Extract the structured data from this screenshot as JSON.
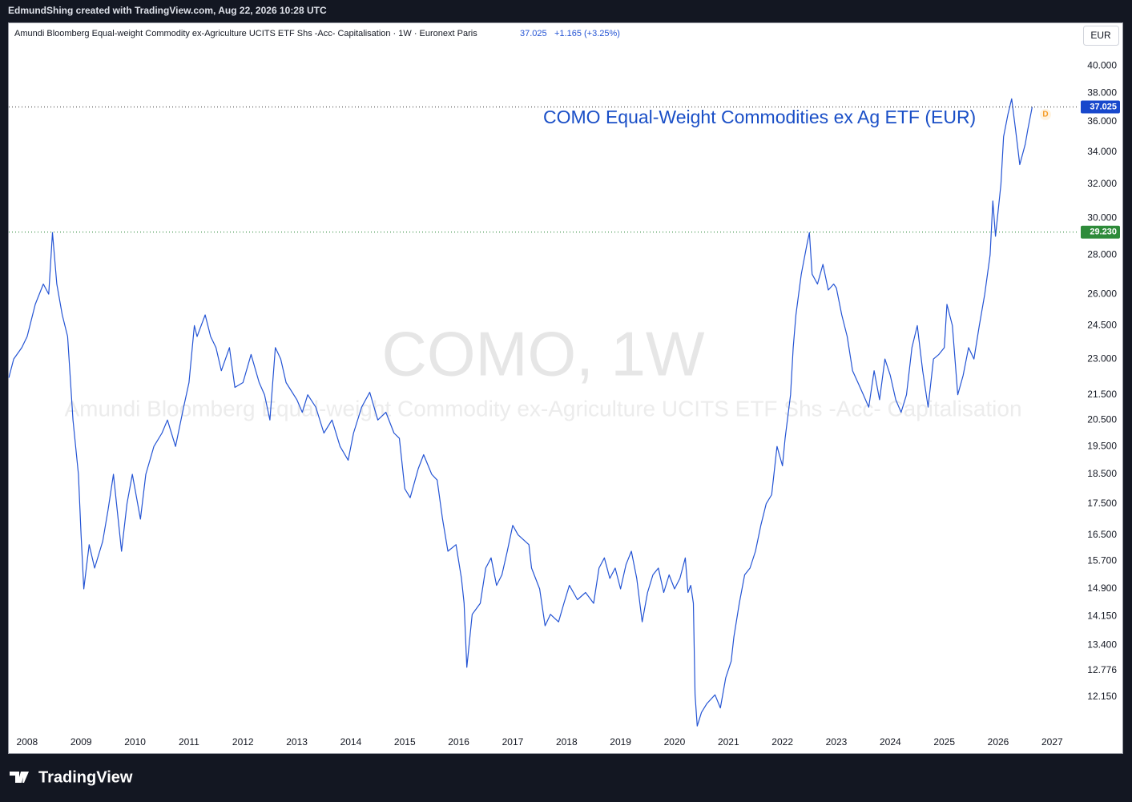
{
  "header": {
    "text": "EdmundShing created with TradingView.com, Aug 22, 2026 10:28 UTC"
  },
  "footer": {
    "brand": "TradingView"
  },
  "chart_data": {
    "type": "line",
    "legend": {
      "name": "Amundi Bloomberg Equal-weight Commodity ex-Agriculture UCITS ETF Shs -Acc- Capitalisation · 1W · Euronext Paris",
      "price": "37.025",
      "change": "+1.165 (+3.25%)"
    },
    "currency": "EUR",
    "watermark": {
      "symbol": "COMO, 1W",
      "name": "Amundi Bloomberg Equal-weight Commodity ex-Agriculture UCITS ETF Shs -Acc- Capitalisation"
    },
    "annotation": "COMO Equal-Weight Commodities ex Ag ETF (EUR)",
    "marker_label": "D",
    "log_scale": true,
    "grid": false,
    "xlim": [
      2007.66,
      2027.47
    ],
    "xticks": [
      2008,
      2009,
      2010,
      2011,
      2012,
      2013,
      2014,
      2015,
      2016,
      2017,
      2018,
      2019,
      2020,
      2021,
      2022,
      2023,
      2024,
      2025,
      2026,
      2027
    ],
    "ylim": [
      11.4,
      43.3
    ],
    "yticks": [
      {
        "value": 12.15,
        "label": "12.150"
      },
      12.776,
      {
        "value": 13.4,
        "label": "13.400"
      },
      {
        "value": 14.15,
        "label": "14.150"
      },
      {
        "value": 14.9,
        "label": "14.900"
      },
      {
        "value": 15.7,
        "label": "15.700"
      },
      {
        "value": 16.5,
        "label": "16.500"
      },
      {
        "value": 17.5,
        "label": "17.500"
      },
      {
        "value": 18.5,
        "label": "18.500"
      },
      {
        "value": 19.5,
        "label": "19.500"
      },
      {
        "value": 20.5,
        "label": "20.500"
      },
      {
        "value": 21.5,
        "label": "21.500"
      },
      {
        "value": 23,
        "label": "23.000"
      },
      {
        "value": 24.5,
        "label": "24.500"
      },
      {
        "value": 26,
        "label": "26.000"
      },
      {
        "value": 28,
        "label": "28.000"
      },
      {
        "value": 30,
        "label": "30.000"
      },
      {
        "value": 32,
        "label": "32.000"
      },
      {
        "value": 34,
        "label": "34.000"
      },
      {
        "value": 36,
        "label": "36.000"
      },
      {
        "value": 38,
        "label": "38.000"
      },
      {
        "value": 40,
        "label": "40.000"
      }
    ],
    "price_lines": [
      {
        "value": 37.025,
        "label": "37.025",
        "color": "#1848cc",
        "line_color": "#555555"
      },
      {
        "value": 29.23,
        "label": "29.230",
        "color": "#2e8b3a",
        "line_color": "#2e8b3a"
      }
    ],
    "x": [
      2007.66,
      2007.75,
      2007.9,
      2008.0,
      2008.15,
      2008.3,
      2008.4,
      2008.47,
      2008.55,
      2008.65,
      2008.75,
      2008.85,
      2008.95,
      2009.0,
      2009.05,
      2009.15,
      2009.25,
      2009.4,
      2009.5,
      2009.6,
      2009.75,
      2009.85,
      2009.95,
      2010.1,
      2010.2,
      2010.35,
      2010.5,
      2010.6,
      2010.75,
      2010.9,
      2011.0,
      2011.1,
      2011.15,
      2011.3,
      2011.4,
      2011.5,
      2011.6,
      2011.75,
      2011.85,
      2012.0,
      2012.15,
      2012.3,
      2012.4,
      2012.5,
      2012.6,
      2012.7,
      2012.8,
      2013.0,
      2013.1,
      2013.2,
      2013.35,
      2013.5,
      2013.65,
      2013.8,
      2013.95,
      2014.05,
      2014.2,
      2014.35,
      2014.5,
      2014.65,
      2014.8,
      2014.9,
      2015.0,
      2015.1,
      2015.25,
      2015.35,
      2015.5,
      2015.6,
      2015.7,
      2015.8,
      2015.95,
      2016.05,
      2016.1,
      2016.15,
      2016.25,
      2016.4,
      2016.5,
      2016.6,
      2016.7,
      2016.8,
      2016.9,
      2017.0,
      2017.1,
      2017.3,
      2017.35,
      2017.5,
      2017.6,
      2017.7,
      2017.85,
      2017.95,
      2018.05,
      2018.2,
      2018.35,
      2018.5,
      2018.6,
      2018.7,
      2018.8,
      2018.9,
      2019.0,
      2019.1,
      2019.2,
      2019.3,
      2019.4,
      2019.5,
      2019.6,
      2019.7,
      2019.8,
      2019.9,
      2020.0,
      2020.1,
      2020.2,
      2020.25,
      2020.3,
      2020.35,
      2020.38,
      2020.42,
      2020.5,
      2020.6,
      2020.75,
      2020.85,
      2020.95,
      2021.05,
      2021.1,
      2021.2,
      2021.3,
      2021.4,
      2021.5,
      2021.6,
      2021.7,
      2021.8,
      2021.9,
      2022.0,
      2022.05,
      2022.15,
      2022.2,
      2022.25,
      2022.3,
      2022.35,
      2022.45,
      2022.5,
      2022.55,
      2022.65,
      2022.75,
      2022.85,
      2022.95,
      2023.0,
      2023.1,
      2023.2,
      2023.3,
      2023.4,
      2023.5,
      2023.6,
      2023.7,
      2023.8,
      2023.9,
      2024.0,
      2024.1,
      2024.2,
      2024.3,
      2024.4,
      2024.5,
      2024.6,
      2024.7,
      2024.8,
      2024.9,
      2025.0,
      2025.05,
      2025.15,
      2025.25,
      2025.35,
      2025.45,
      2025.55,
      2025.65,
      2025.75,
      2025.85,
      2025.9,
      2025.95,
      2026.05,
      2026.1,
      2026.18,
      2026.25,
      2026.32,
      2026.4,
      2026.5,
      2026.55,
      2026.63
    ],
    "series": [
      {
        "name": "COMO",
        "color": "#2454d4",
        "values": [
          22.2,
          23,
          23.5,
          24,
          25.5,
          26.5,
          26,
          29.2,
          26.5,
          25,
          24,
          20.5,
          18.5,
          16.5,
          14.9,
          16.2,
          15.5,
          16.3,
          17.3,
          18.5,
          16,
          17.5,
          18.5,
          17,
          18.5,
          19.5,
          20,
          20.5,
          19.5,
          21,
          22,
          24.5,
          24,
          25,
          24,
          23.5,
          22.5,
          23.5,
          21.8,
          22,
          23.2,
          22,
          21.5,
          20.5,
          23.5,
          23,
          22,
          21.3,
          20.8,
          21.5,
          21,
          20,
          20.5,
          19.5,
          19,
          20,
          21,
          21.6,
          20.5,
          20.8,
          20,
          19.8,
          18,
          17.7,
          18.7,
          19.2,
          18.5,
          18.3,
          17,
          16,
          16.2,
          15.2,
          14.5,
          12.85,
          14.2,
          14.5,
          15.5,
          15.8,
          15,
          15.3,
          16,
          16.8,
          16.5,
          16.2,
          15.5,
          14.9,
          13.9,
          14.2,
          14,
          14.5,
          15,
          14.6,
          14.8,
          14.5,
          15.5,
          15.8,
          15.2,
          15.5,
          14.9,
          15.6,
          16,
          15.2,
          14,
          14.8,
          15.3,
          15.5,
          14.8,
          15.3,
          14.9,
          15.2,
          15.8,
          14.8,
          15,
          14.5,
          12.2,
          11.5,
          11.8,
          12,
          12.2,
          11.9,
          12.6,
          13,
          13.6,
          14.5,
          15.3,
          15.5,
          16,
          16.8,
          17.5,
          17.8,
          19.5,
          18.8,
          19.8,
          21.5,
          23.5,
          25,
          26,
          27,
          28.5,
          29.2,
          27,
          26.5,
          27.5,
          26.2,
          26.5,
          26.3,
          25,
          24,
          22.5,
          22,
          21.5,
          21,
          22.5,
          21.3,
          23,
          22.3,
          21.3,
          20.8,
          21.5,
          23.5,
          24.5,
          22.5,
          21,
          23,
          23.2,
          23.5,
          25.5,
          24.5,
          21.5,
          22.3,
          23.5,
          23,
          24.5,
          26,
          28,
          31,
          29,
          32,
          35,
          36.5,
          37.6,
          35.5,
          33.2,
          34.5,
          35.5,
          37.025
        ]
      }
    ]
  }
}
